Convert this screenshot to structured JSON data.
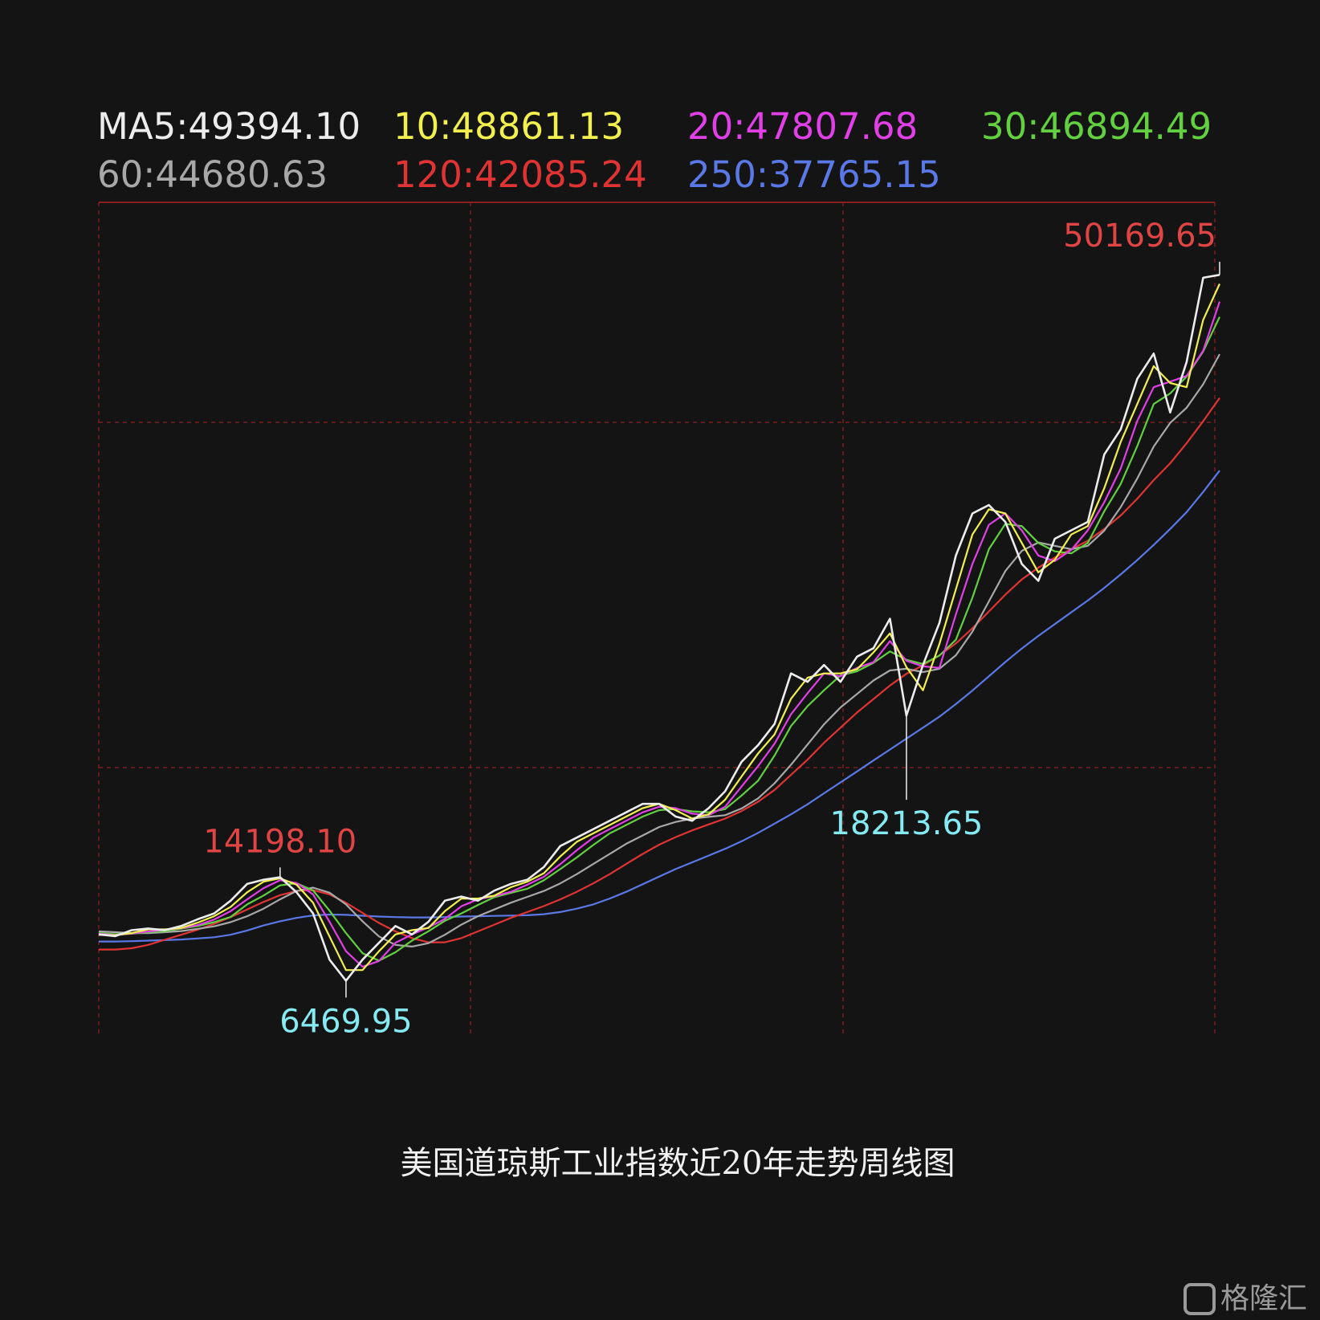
{
  "chart_data": {
    "type": "line",
    "title": "美国道琼斯工业指数近20年走势周线图",
    "watermark": "格隆汇",
    "ylim": [
      4200,
      53700
    ],
    "grid": true,
    "series": [
      {
        "name": "MA5:49394.10",
        "color": "#ececec",
        "values": [
          10220,
          10120,
          10470,
          10570,
          10470,
          10720,
          11120,
          11470,
          12220,
          13220,
          13470,
          13620,
          12720,
          11470,
          8720,
          7470,
          8720,
          9720,
          10720,
          10220,
          10970,
          12220,
          12470,
          12220,
          12820,
          13220,
          13470,
          14220,
          15470,
          15970,
          16470,
          16970,
          17470,
          17970,
          17970,
          17220,
          16970,
          17720,
          18720,
          20470,
          21470,
          22720,
          25720,
          25220,
          26220,
          25220,
          26720,
          27220,
          28970,
          23220,
          26220,
          28720,
          32720,
          35220,
          35720,
          34720,
          32220,
          31220,
          33720,
          34220,
          34720,
          38720,
          40220,
          43220,
          44720,
          41220,
          44220,
          49220,
          49394.1
        ]
      },
      {
        "name": "10:48861.13",
        "color": "#f2f04e",
        "values": [
          10200,
          10170,
          10300,
          10520,
          10520,
          10600,
          10920,
          11300,
          11850,
          12720,
          13350,
          13550,
          13170,
          12100,
          10100,
          8100,
          8100,
          9220,
          10220,
          10470,
          10600,
          11600,
          12350,
          12350,
          12520,
          13020,
          13350,
          13850,
          14850,
          15720,
          16220,
          16720,
          17220,
          17720,
          17970,
          17600,
          17100,
          17350,
          18220,
          19600,
          20970,
          22100,
          24220,
          25470,
          25720,
          25720,
          25970,
          26970,
          28100,
          26100,
          24720,
          27470,
          30720,
          33970,
          35470,
          35220,
          33470,
          31720,
          32470,
          33970,
          34470,
          36720,
          39470,
          41720,
          43970,
          42970,
          42720,
          46720,
          48861.13
        ]
      },
      {
        "name": "20:47807.68",
        "color": "#e040e6",
        "values": [
          10250,
          10180,
          10270,
          10390,
          10500,
          10590,
          10770,
          11100,
          11600,
          12300,
          12970,
          13440,
          13270,
          12600,
          10970,
          9220,
          8300,
          8640,
          9720,
          10220,
          10640,
          11140,
          11890,
          12300,
          12500,
          12750,
          13170,
          13640,
          14390,
          15220,
          15970,
          16470,
          16970,
          17470,
          17800,
          17720,
          17390,
          17300,
          17800,
          19000,
          20220,
          21550,
          23300,
          24550,
          25720,
          25550,
          26050,
          26390,
          27640,
          26470,
          26140,
          26050,
          29220,
          32220,
          34550,
          35220,
          34220,
          32720,
          32390,
          33050,
          34220,
          35890,
          37890,
          40720,
          42720,
          43050,
          43390,
          44890,
          47807.68
        ]
      },
      {
        "name": "30:46894.49",
        "color": "#62d040",
        "values": [
          10300,
          10230,
          10260,
          10350,
          10410,
          10560,
          10720,
          10950,
          11260,
          12000,
          12530,
          13130,
          13260,
          12830,
          11630,
          10300,
          9100,
          8660,
          9160,
          9850,
          10410,
          11030,
          11470,
          11970,
          12430,
          12690,
          12930,
          13430,
          14100,
          14790,
          15530,
          16220,
          16720,
          17220,
          17600,
          17660,
          17530,
          17470,
          17660,
          18470,
          19350,
          20850,
          22600,
          23780,
          24720,
          25600,
          25850,
          26350,
          27030,
          26530,
          26280,
          26780,
          27720,
          30220,
          33100,
          34600,
          34470,
          33470,
          32970,
          32850,
          33470,
          35350,
          36970,
          39220,
          41720,
          42350,
          43350,
          44850,
          46894.49
        ]
      },
      {
        "name": "60:44680.63",
        "color": "#a8a8a8",
        "values": [
          10400,
          10350,
          10300,
          10300,
          10350,
          10420,
          10550,
          10700,
          10950,
          11300,
          11750,
          12300,
          12800,
          13000,
          12700,
          12000,
          11000,
          10100,
          9600,
          9500,
          9700,
          10200,
          10800,
          11300,
          11700,
          12100,
          12450,
          12800,
          13250,
          13800,
          14400,
          15000,
          15600,
          16100,
          16600,
          16900,
          17100,
          17200,
          17300,
          17700,
          18300,
          19200,
          20300,
          21500,
          22700,
          23700,
          24500,
          25300,
          25900,
          26000,
          25800,
          26000,
          26800,
          28200,
          30000,
          31800,
          33000,
          33500,
          33300,
          33100,
          33300,
          34200,
          35600,
          37300,
          39200,
          40600,
          41500,
          42900,
          44680.63
        ]
      },
      {
        "name": "120:42085.24",
        "color": "#e03434",
        "values": [
          9320,
          9320,
          9400,
          9600,
          9900,
          10200,
          10500,
          10850,
          11250,
          11700,
          12150,
          12550,
          12800,
          12850,
          12600,
          12100,
          11500,
          10900,
          10400,
          10000,
          9750,
          9750,
          10000,
          10400,
          10800,
          11200,
          11550,
          11900,
          12300,
          12750,
          13250,
          13800,
          14400,
          15000,
          15550,
          16000,
          16400,
          16750,
          17100,
          17550,
          18100,
          18800,
          19700,
          20600,
          21600,
          22500,
          23400,
          24200,
          25000,
          25700,
          26200,
          26800,
          27500,
          28400,
          29400,
          30400,
          31300,
          32000,
          32600,
          33100,
          33600,
          34300,
          35100,
          36100,
          37200,
          38200,
          39400,
          40700,
          42085.24
        ]
      },
      {
        "name": "250:37765.15",
        "color": "#5a78e6",
        "values": [
          9800,
          9800,
          9820,
          9850,
          9880,
          9920,
          9980,
          10050,
          10200,
          10450,
          10750,
          11000,
          11200,
          11350,
          11400,
          11380,
          11330,
          11280,
          11250,
          11230,
          11230,
          11250,
          11280,
          11300,
          11320,
          11340,
          11360,
          11420,
          11550,
          11750,
          12000,
          12350,
          12750,
          13200,
          13650,
          14100,
          14500,
          14900,
          15300,
          15750,
          16250,
          16800,
          17350,
          17950,
          18600,
          19250,
          19900,
          20550,
          21200,
          21850,
          22500,
          23150,
          23900,
          24700,
          25550,
          26400,
          27200,
          27950,
          28650,
          29350,
          30050,
          30800,
          31600,
          32450,
          33350,
          34300,
          35300,
          36500,
          37765.15
        ]
      }
    ],
    "annotations": [
      {
        "label": "50169.65",
        "value": 50169.65,
        "x": 68,
        "color": "#e04444"
      },
      {
        "label": "14198.10",
        "value": 14198.1,
        "x": 11,
        "color": "#e04444"
      },
      {
        "label": "6469.95",
        "value": 6469.95,
        "x": 15,
        "color": "#86eaf2"
      },
      {
        "label": "18213.65",
        "value": 18213.65,
        "x": 49,
        "color": "#86eaf2"
      }
    ]
  }
}
